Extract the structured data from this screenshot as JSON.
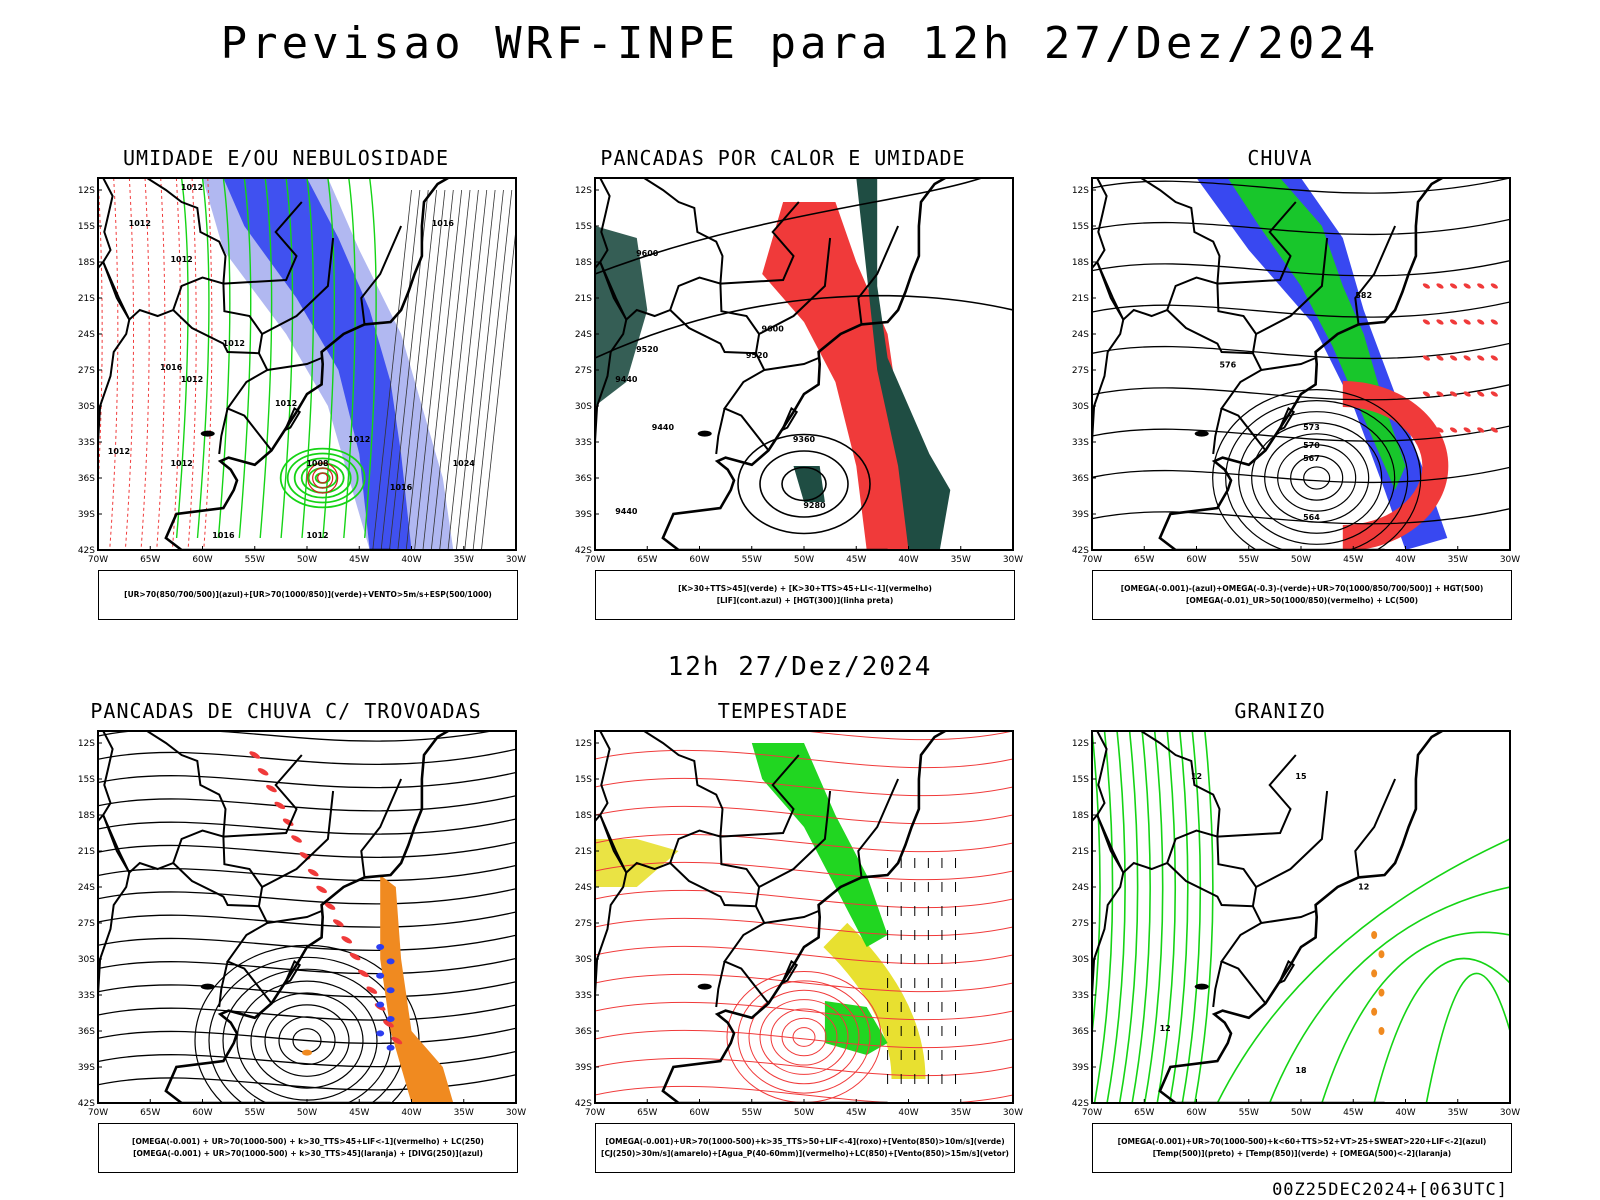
{
  "header": {
    "title": "Previsao WRF-INPE  para 12h 27/Dez/2024",
    "subtitle": "12h 27/Dez/2024",
    "footer": "00Z25DEC2024+[063UTC]"
  },
  "axes": {
    "lat_ticks": [
      "12S",
      "15S",
      "18S",
      "21S",
      "24S",
      "27S",
      "30S",
      "33S",
      "36S",
      "39S",
      "42S"
    ],
    "lon_ticks": [
      "70W",
      "65W",
      "60W",
      "55W",
      "50W",
      "45W",
      "40W",
      "35W",
      "30W"
    ]
  },
  "colors": {
    "blue": "#2d3ef0",
    "light_blue": "#a9b0f0",
    "green": "#15d415",
    "red": "#f03a3a",
    "dark_green": "#1f4d43",
    "orange": "#f08a20",
    "yellow": "#e8e030"
  },
  "panels": [
    {
      "title": "UMIDADE E/OU NEBULOSIDADE",
      "legend": [
        "[UR>70(850/700/500)](azul)+[UR>70(1000/850)](verde)+VENTO>5m/s+ESP(500/1000)"
      ],
      "labels": [
        "1012",
        "1012",
        "1012",
        "1016",
        "1012",
        "1012",
        "1012",
        "1012",
        "1012",
        "1012",
        "1016",
        "1024",
        "1016",
        "1008",
        "1012",
        "1016"
      ]
    },
    {
      "title": "PANCADAS POR CALOR E UMIDADE",
      "legend": [
        "[K>30+TTS>45](verde) + [K>30+TTS>45+LI<-1](vermelho)",
        "[LIF](cont.azul) + [HGT(300)](linha preta)"
      ],
      "labels": [
        "9600",
        "9520",
        "9440",
        "9600",
        "9520",
        "9440",
        "9360",
        "9280",
        "9440"
      ]
    },
    {
      "title": "CHUVA",
      "legend": [
        "[OMEGA(-0.001)-(azul)+OMEGA(-0.3)-(verde)+UR>70(1000/850/700/500)] + HGT(500)",
        "[OMEGA(-0.01)_UR>50(1000/850)(vermelho) + LC(500)"
      ],
      "labels": [
        "576",
        "573",
        "570",
        "567",
        "564",
        "582"
      ]
    },
    {
      "title": "PANCADAS DE CHUVA C/ TROVOADAS",
      "legend": [
        "[OMEGA(-0.001) + UR>70(1000-500) + k>30_TTS>45+LIF<-1](vermelho) + LC(250)",
        "[OMEGA(-0.001) + UR>70(1000-500) + k>30_TTS>45](laranja) + [DIVG(250)](azul)"
      ],
      "labels": []
    },
    {
      "title": "TEMPESTADE",
      "legend": [
        "[OMEGA(-0.001)+UR>70(1000-500)+k>35_TTS>50+LIF<-4](roxo)+[Vento(850)>10m/s](verde)",
        "[CJ(250)>30m/s](amarelo)+[Agua_P(40-60mm)](vermelho)+LC(850)+[Vento(850)>15m/s](vetor)"
      ],
      "labels": []
    },
    {
      "title": "GRANIZO",
      "legend": [
        "[OMEGA(-0.001)+UR>70(1000-500)+k<60+TTS>52+VT>25+SWEAT>220+LIF<-2](azul)",
        "[Temp(500)](preto) + [Temp(850)](verde) + [OMEGA(500)<-2](laranja)"
      ],
      "labels": [
        "12",
        "12",
        "15",
        "12",
        "18"
      ]
    }
  ]
}
